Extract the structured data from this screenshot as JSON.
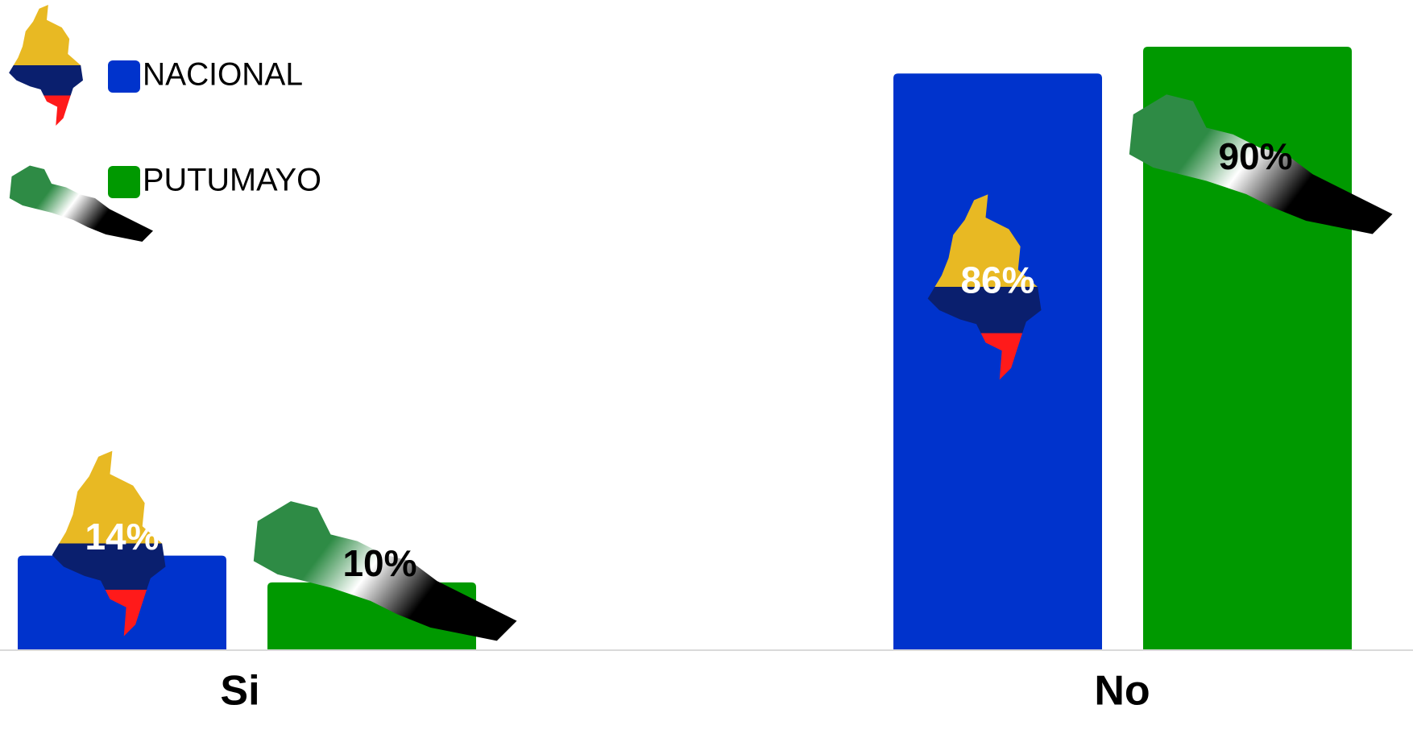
{
  "chart_data": {
    "type": "bar",
    "categories": [
      "Si",
      "No"
    ],
    "series": [
      {
        "name": "NACIONAL",
        "color": "#0033cc",
        "values": [
          14,
          86
        ],
        "value_labels": [
          "14%",
          "86%"
        ]
      },
      {
        "name": "PUTUMAYO",
        "color": "#009900",
        "values": [
          10,
          90
        ],
        "value_labels": [
          "10%",
          "90%"
        ]
      }
    ]
  }
}
